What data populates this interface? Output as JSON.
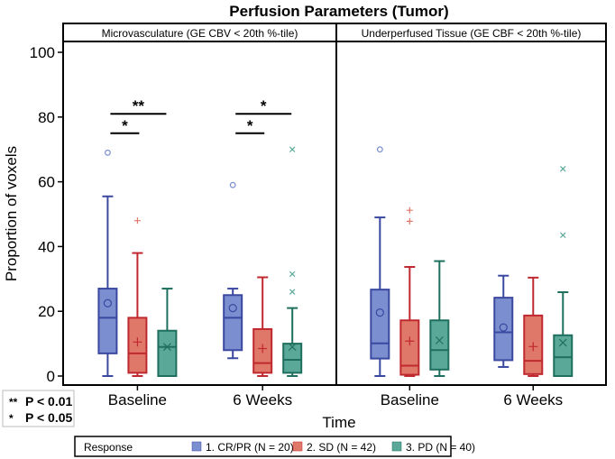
{
  "chart_data": {
    "type": "box",
    "title": "Perfusion Parameters (Tumor)",
    "xlabel": "Time",
    "ylabel": "Proportion of voxels",
    "ylim": [
      0,
      100
    ],
    "yticks": [
      0,
      20,
      40,
      60,
      80,
      100
    ],
    "categories": [
      "Baseline",
      "6 Weeks"
    ],
    "legend": {
      "title": "Response",
      "placement": "bottom",
      "entries": [
        {
          "name": "1. CR/PR (N = 20)",
          "fill": "#7b8fd0",
          "stroke": "#3a48a0",
          "marker": "circle"
        },
        {
          "name": "2. SD (N = 42)",
          "fill": "#e0786a",
          "stroke": "#c0282f",
          "marker": "plus"
        },
        {
          "name": "3. PD (N = 40)",
          "fill": "#5aa898",
          "stroke": "#1f6f5e",
          "marker": "x"
        }
      ]
    },
    "significance_key": [
      {
        "symbol": "**",
        "label": "P < 0.01"
      },
      {
        "symbol": "*",
        "label": "P < 0.05"
      }
    ],
    "panels": [
      {
        "title": "Microvasculature (GE CBV < 20th %-tile)",
        "groups": [
          {
            "category": "Baseline",
            "boxes": [
              {
                "min": 0,
                "q1": 7,
                "median": 18,
                "q3": 27,
                "max": 55.5,
                "mean": 22.5,
                "outliers": [
                  69
                ]
              },
              {
                "min": 0,
                "q1": 1,
                "median": 7,
                "q3": 18,
                "max": 38,
                "mean": 10.5,
                "outliers": [
                  48
                ]
              },
              {
                "min": 0,
                "q1": 0,
                "median": 9,
                "q3": 14,
                "max": 27,
                "mean": 9,
                "outliers": []
              }
            ],
            "significance": [
              {
                "from": 0,
                "to": 1,
                "y": 75,
                "label": "*"
              },
              {
                "from": 0,
                "to": 2,
                "y": 81,
                "label": "**"
              }
            ]
          },
          {
            "category": "6 Weeks",
            "boxes": [
              {
                "min": 5.5,
                "q1": 8,
                "median": 18,
                "q3": 25,
                "max": 27,
                "mean": 21,
                "outliers": [
                  59
                ]
              },
              {
                "min": 0,
                "q1": 1,
                "median": 4,
                "q3": 14.5,
                "max": 30.5,
                "mean": 8.5,
                "outliers": []
              },
              {
                "min": 0,
                "q1": 1,
                "median": 5,
                "q3": 10,
                "max": 21,
                "mean": 9,
                "outliers": [
                  26,
                  31.5,
                  70
                ]
              }
            ],
            "significance": [
              {
                "from": 0,
                "to": 1,
                "y": 75,
                "label": "*"
              },
              {
                "from": 0,
                "to": 2,
                "y": 81,
                "label": "*"
              }
            ]
          }
        ]
      },
      {
        "title": "Underperfused Tissue (GE CBF < 20th %-tile)",
        "groups": [
          {
            "category": "Baseline",
            "boxes": [
              {
                "min": 0,
                "q1": 5.4,
                "median": 10.1,
                "q3": 26.7,
                "max": 49,
                "mean": 19.6,
                "outliers": [
                  70
                ]
              },
              {
                "min": 0,
                "q1": 0.4,
                "median": 3.2,
                "q3": 17.2,
                "max": 33.7,
                "mean": 10.8,
                "outliers": [
                  47.8,
                  51.2
                ]
              },
              {
                "min": 0,
                "q1": 2,
                "median": 8,
                "q3": 17.2,
                "max": 35.5,
                "mean": 11,
                "outliers": []
              }
            ],
            "significance": []
          },
          {
            "category": "6 Weeks",
            "boxes": [
              {
                "min": 2.8,
                "q1": 4.9,
                "median": 13.5,
                "q3": 24.2,
                "max": 31,
                "mean": 15,
                "outliers": []
              },
              {
                "min": 0,
                "q1": 0.6,
                "median": 4.7,
                "q3": 18.7,
                "max": 30.4,
                "mean": 9.1,
                "outliers": []
              },
              {
                "min": 0,
                "q1": 0,
                "median": 5.8,
                "q3": 12.6,
                "max": 25.9,
                "mean": 10.3,
                "outliers": [
                  43.5,
                  64
                ]
              }
            ],
            "significance": []
          }
        ]
      }
    ]
  }
}
